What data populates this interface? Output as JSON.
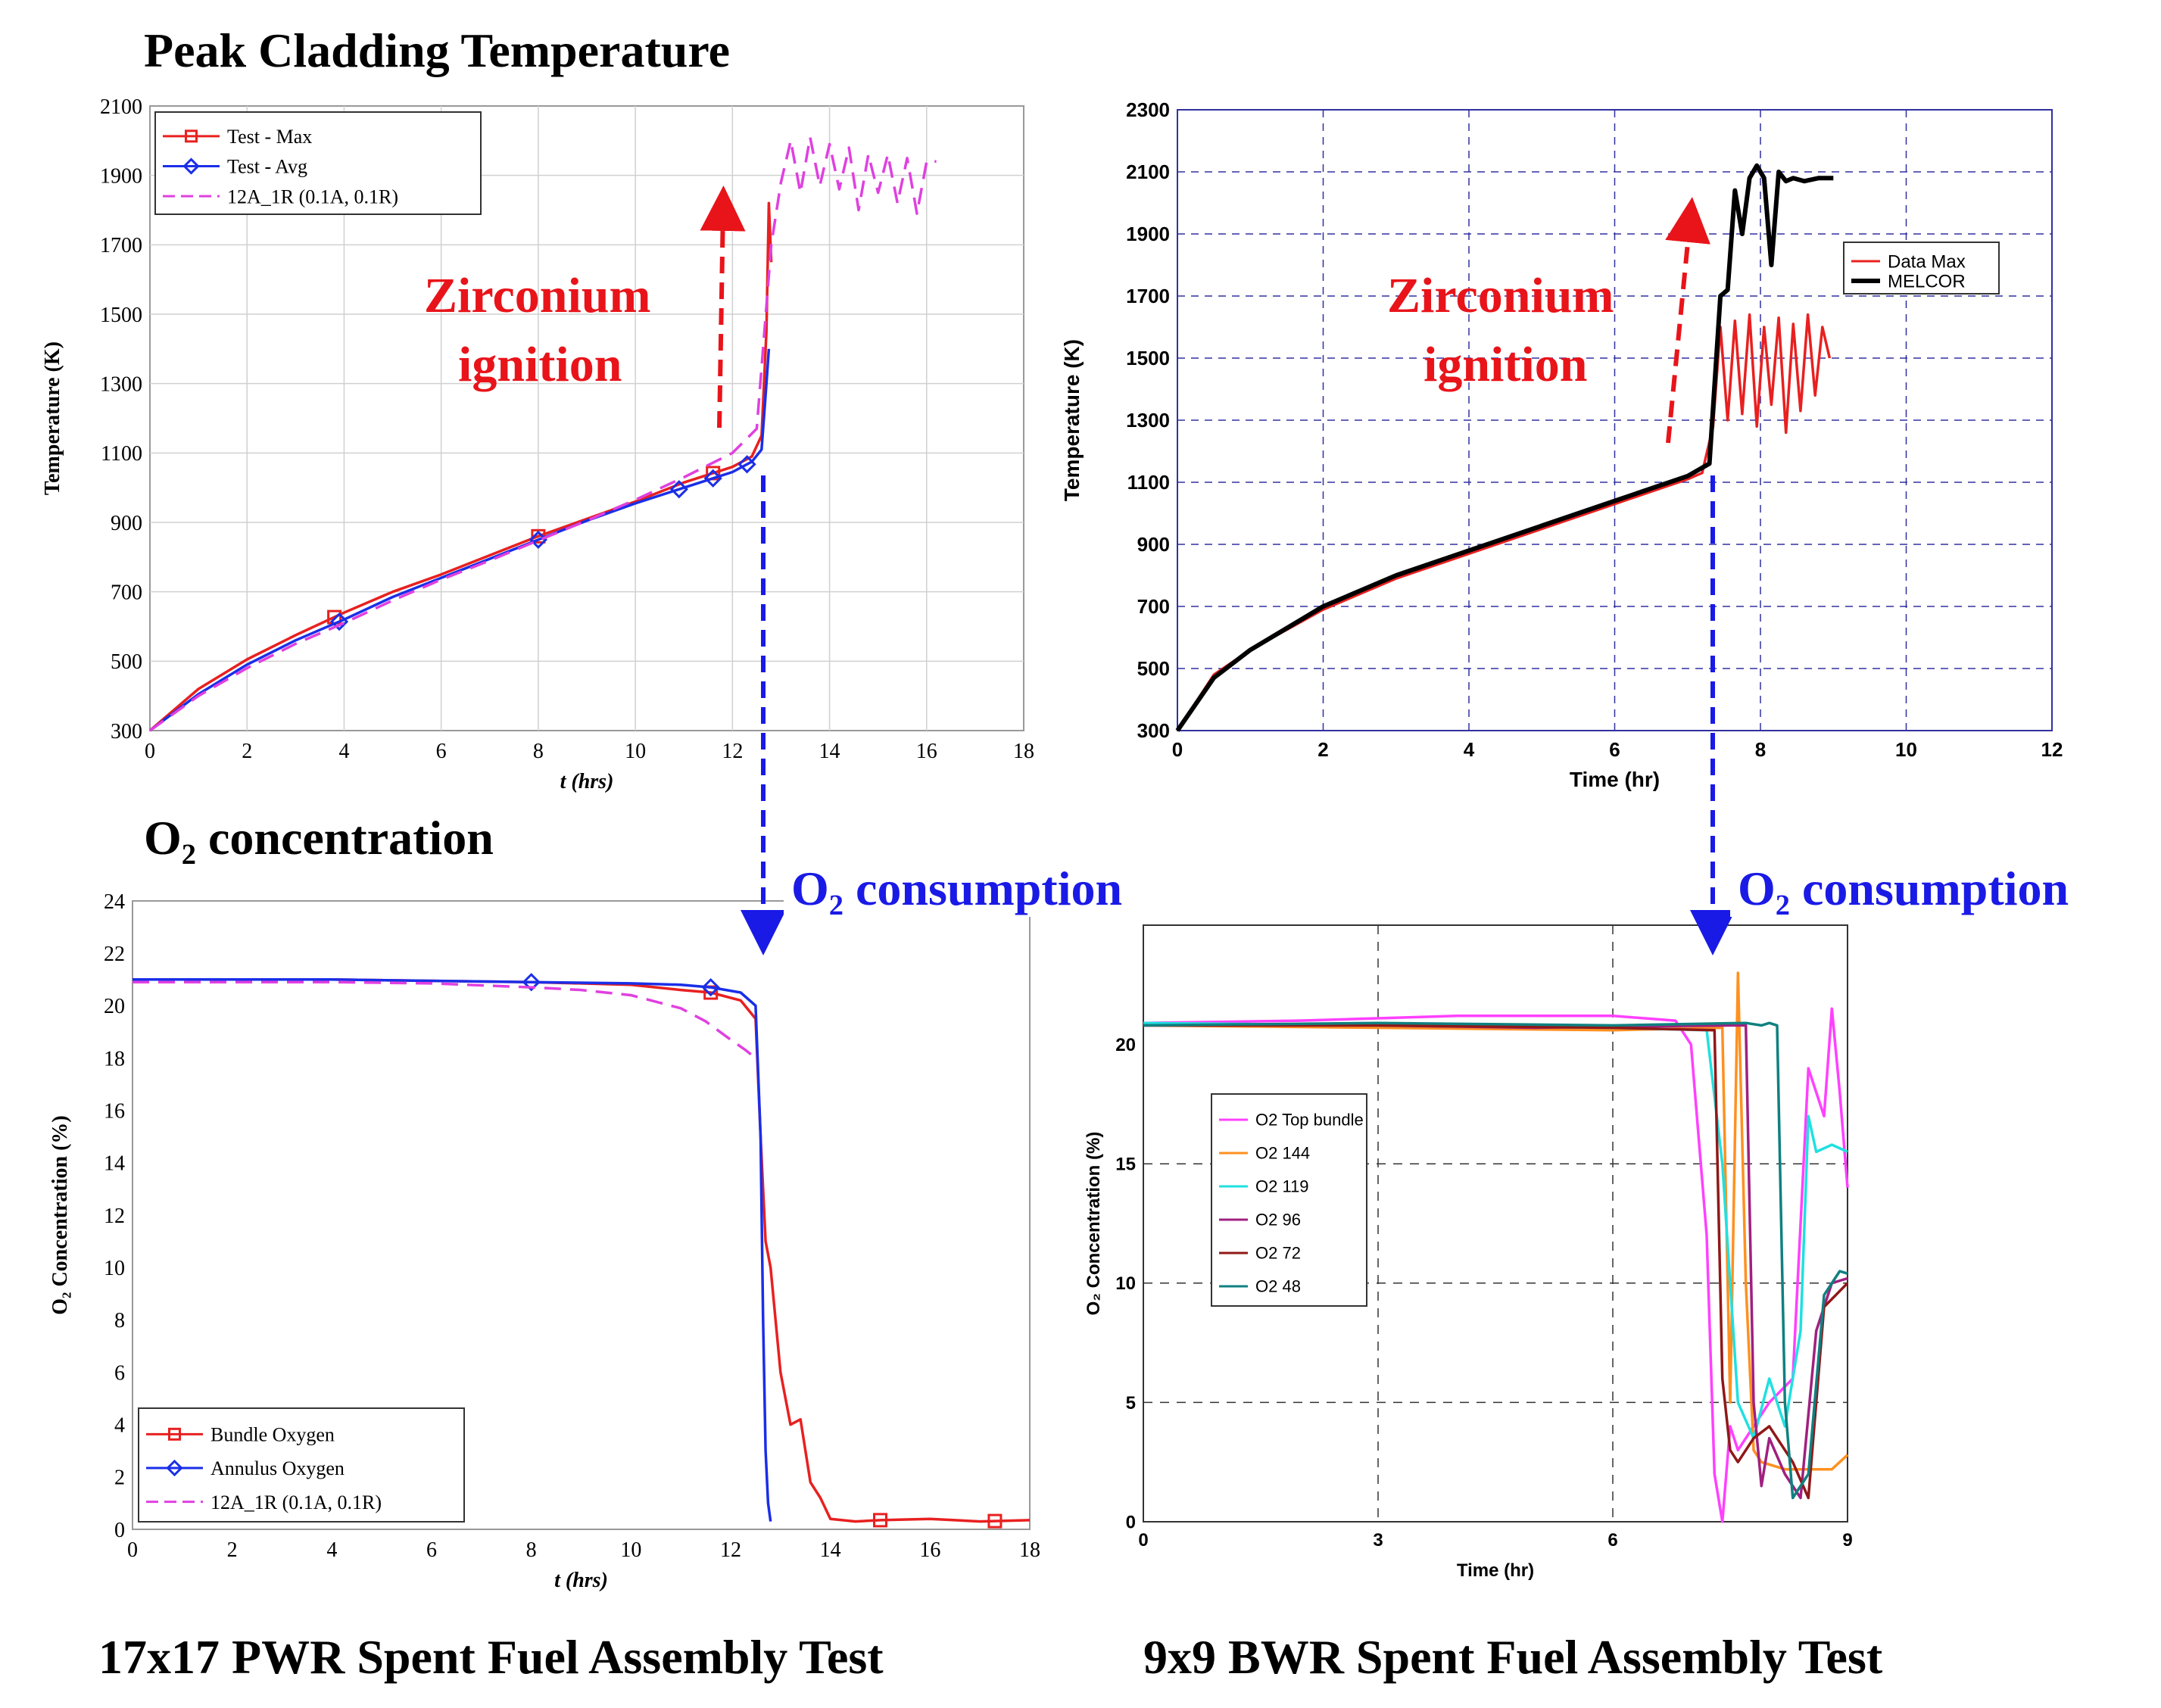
{
  "figure": {
    "heading_peak": "Peak Cladding Temperature",
    "heading_o2": "O₂ concentration",
    "caption_left": "17x17 PWR Spent Fuel Assembly Test",
    "caption_right": "9x9 BWR Spent Fuel Assembly Test",
    "annotation_ignition_line1": "Zirconium",
    "annotation_ignition_line2": "ignition",
    "annotation_consumption": "O₂ consumption",
    "colors": {
      "annotation_red": "#e8141a",
      "annotation_blue": "#1a1ae6",
      "grid_blue": "#3030a0"
    }
  },
  "chart_data": [
    {
      "id": "pwr_temp",
      "type": "line",
      "title": "",
      "xlabel": "t (hrs)",
      "ylabel": "Temperature (K)",
      "xlim": [
        0,
        18
      ],
      "ylim": [
        300,
        2100
      ],
      "xticks": [
        0,
        2,
        4,
        6,
        8,
        10,
        12,
        14,
        16,
        18
      ],
      "yticks": [
        300,
        500,
        700,
        900,
        1100,
        1300,
        1500,
        1700,
        1900,
        2100
      ],
      "grid": true,
      "legend": "top-left",
      "series": [
        {
          "name": "Test - Max",
          "color": "#e82020",
          "marker": "square",
          "x": [
            0,
            1,
            2,
            3,
            4,
            5,
            6,
            7,
            8,
            9,
            10,
            11,
            12,
            12.4,
            12.6,
            12.7,
            12.75,
            12.8
          ],
          "y": [
            300,
            420,
            505,
            575,
            640,
            700,
            750,
            805,
            860,
            910,
            960,
            1015,
            1060,
            1090,
            1150,
            1450,
            1820,
            1650
          ],
          "marker_x": [
            3.8,
            8.0,
            11.6
          ]
        },
        {
          "name": "Test - Avg",
          "color": "#1a2ee8",
          "marker": "diamond",
          "x": [
            0,
            1,
            2,
            3,
            4,
            5,
            6,
            7,
            8,
            9,
            10,
            11,
            12,
            12.4,
            12.6,
            12.7,
            12.75
          ],
          "y": [
            300,
            405,
            490,
            560,
            620,
            685,
            740,
            795,
            850,
            905,
            955,
            1000,
            1045,
            1075,
            1110,
            1300,
            1400
          ],
          "marker_x": [
            3.9,
            8.0,
            10.9,
            11.6,
            12.3
          ]
        },
        {
          "name": "12A_1R (0.1A, 0.1R)",
          "color": "#e040e0",
          "dash": true,
          "x": [
            0,
            1,
            2,
            3,
            4,
            5,
            6,
            7,
            8,
            9,
            10,
            11,
            12,
            12.5,
            12.8,
            13.0,
            13.2,
            13.4,
            13.6,
            13.8,
            14.0,
            14.2,
            14.4,
            14.6,
            14.8,
            15.0,
            15.2,
            15.4,
            15.6,
            15.8,
            16.0,
            16.2
          ],
          "y": [
            300,
            400,
            480,
            550,
            610,
            675,
            735,
            790,
            848,
            905,
            965,
            1030,
            1100,
            1170,
            1700,
            1880,
            2000,
            1850,
            2010,
            1870,
            1990,
            1860,
            1980,
            1800,
            1960,
            1850,
            1960,
            1820,
            1950,
            1790,
            1940,
            1940
          ]
        }
      ],
      "annotations": [
        "Zirconium",
        "ignition"
      ]
    },
    {
      "id": "bwr_temp",
      "type": "line",
      "title": "",
      "xlabel": "Time (hr)",
      "ylabel": "Temperature (K)",
      "xlim": [
        0,
        12
      ],
      "ylim": [
        300,
        2300
      ],
      "xticks": [
        0,
        2,
        4,
        6,
        8,
        10,
        12
      ],
      "yticks": [
        300,
        500,
        700,
        900,
        1100,
        1300,
        1500,
        1700,
        1900,
        2100,
        2300
      ],
      "grid": true,
      "legend": "right",
      "series": [
        {
          "name": "Data Max",
          "color": "#e82020",
          "x": [
            0,
            0.5,
            1,
            2,
            3,
            4,
            5,
            6,
            7,
            7.2,
            7.35,
            7.45,
            7.55,
            7.65,
            7.75,
            7.85,
            7.95,
            8.05,
            8.15,
            8.25,
            8.35,
            8.45,
            8.55,
            8.65,
            8.75,
            8.85,
            8.95
          ],
          "y": [
            300,
            480,
            560,
            690,
            790,
            870,
            950,
            1030,
            1110,
            1130,
            1280,
            1600,
            1300,
            1620,
            1320,
            1640,
            1280,
            1600,
            1350,
            1630,
            1260,
            1610,
            1330,
            1640,
            1380,
            1600,
            1500
          ]
        },
        {
          "name": "MELCOR",
          "color": "#000000",
          "x": [
            0,
            0.5,
            1,
            2,
            3,
            4,
            5,
            6,
            7,
            7.3,
            7.45,
            7.55,
            7.65,
            7.75,
            7.85,
            7.95,
            8.05,
            8.15,
            8.25,
            8.35,
            8.45,
            8.6,
            8.8,
            9.0
          ],
          "y": [
            300,
            470,
            560,
            700,
            800,
            880,
            960,
            1040,
            1120,
            1160,
            1700,
            1720,
            2040,
            1900,
            2080,
            2120,
            2080,
            1800,
            2100,
            2070,
            2080,
            2070,
            2080,
            2080
          ]
        }
      ],
      "annotations": [
        "Zirconium",
        "ignition"
      ]
    },
    {
      "id": "pwr_o2",
      "type": "line",
      "title": "",
      "xlabel": "t (hrs)",
      "ylabel": "O₂ Concentration (%)",
      "xlim": [
        0,
        18
      ],
      "ylim": [
        0,
        24
      ],
      "xticks": [
        0,
        2,
        4,
        6,
        8,
        10,
        12,
        14,
        16,
        18
      ],
      "yticks": [
        0,
        2,
        4,
        6,
        8,
        10,
        12,
        14,
        16,
        18,
        20,
        22,
        24
      ],
      "grid": false,
      "legend": "bottom-left",
      "series": [
        {
          "name": "Bundle Oxygen",
          "color": "#e82020",
          "marker": "square",
          "x": [
            0,
            4,
            8,
            10,
            11,
            11.6,
            12.2,
            12.5,
            12.6,
            12.7,
            12.8,
            13.0,
            13.2,
            13.4,
            13.6,
            13.8,
            14.0,
            14.5,
            15.0,
            16.0,
            17.0,
            18.0
          ],
          "y": [
            21.0,
            21.0,
            20.9,
            20.8,
            20.6,
            20.5,
            20.2,
            19.5,
            15.0,
            11.0,
            10.0,
            6.0,
            4.0,
            4.2,
            1.8,
            1.2,
            0.4,
            0.3,
            0.35,
            0.4,
            0.3,
            0.35
          ],
          "marker_x": [
            11.6,
            15.0,
            17.3
          ]
        },
        {
          "name": "Annulus Oxygen",
          "color": "#1a2ee8",
          "marker": "diamond",
          "x": [
            0,
            4,
            8,
            10,
            11,
            11.6,
            12.2,
            12.5,
            12.6,
            12.65,
            12.7,
            12.75,
            12.8
          ],
          "y": [
            21.0,
            21.0,
            20.9,
            20.85,
            20.8,
            20.7,
            20.5,
            20.0,
            15.0,
            8.0,
            3.0,
            1.0,
            0.3
          ],
          "marker_x": [
            8.0,
            11.6
          ]
        },
        {
          "name": "12A_1R (0.1A, 0.1R)",
          "color": "#e040e0",
          "dash": true,
          "x": [
            0,
            4,
            6,
            8,
            9,
            10,
            11,
            11.5,
            12.0,
            12.3,
            12.5
          ],
          "y": [
            20.9,
            20.9,
            20.85,
            20.7,
            20.6,
            20.4,
            19.9,
            19.4,
            18.7,
            18.3,
            18.0
          ]
        }
      ],
      "annotations": [
        "O₂ consumption"
      ]
    },
    {
      "id": "bwr_o2",
      "type": "line",
      "title": "",
      "xlabel": "Time (hr)",
      "ylabel": "O₂ Concentration (%)",
      "xlim": [
        0,
        9
      ],
      "ylim": [
        0,
        25
      ],
      "xticks": [
        0,
        3,
        6,
        9
      ],
      "yticks": [
        0,
        5,
        10,
        15,
        20
      ],
      "grid": true,
      "legend": "left",
      "series": [
        {
          "name": "O2 Top bundle",
          "color": "#ff40ff",
          "x": [
            0,
            2,
            4,
            6,
            6.8,
            7.0,
            7.2,
            7.3,
            7.4,
            7.5,
            7.6,
            7.8,
            8.0,
            8.3,
            8.5,
            8.7,
            8.8,
            8.9,
            9.0
          ],
          "y": [
            20.9,
            21.0,
            21.2,
            21.2,
            21.0,
            20.0,
            12.0,
            2.0,
            0.0,
            4.0,
            3.0,
            4.0,
            5.0,
            6.0,
            19.0,
            17.0,
            21.5,
            18.0,
            14.0
          ]
        },
        {
          "name": "O2 144",
          "color": "#ff9020",
          "x": [
            0,
            3,
            6,
            7.4,
            7.5,
            7.6,
            7.7,
            7.8,
            7.9,
            8.2,
            8.5,
            8.8,
            9.0
          ],
          "y": [
            20.8,
            20.7,
            20.6,
            20.7,
            5.0,
            23.0,
            10.0,
            3.0,
            2.5,
            2.2,
            2.2,
            2.2,
            2.8
          ]
        },
        {
          "name": "O2 119",
          "color": "#20e0e0",
          "x": [
            0,
            3,
            6,
            7.2,
            7.4,
            7.6,
            7.8,
            8.0,
            8.2,
            8.4,
            8.5,
            8.6,
            8.8,
            9.0
          ],
          "y": [
            20.9,
            20.8,
            20.7,
            20.6,
            15.0,
            5.0,
            3.5,
            6.0,
            4.0,
            8.0,
            17.0,
            15.5,
            15.8,
            15.5
          ]
        },
        {
          "name": "O2 96",
          "color": "#a02080",
          "x": [
            0,
            3,
            5,
            7.5,
            7.7,
            7.8,
            7.9,
            8.0,
            8.2,
            8.4,
            8.6,
            8.8,
            9.0
          ],
          "y": [
            20.8,
            20.8,
            20.7,
            20.8,
            20.8,
            5.0,
            1.5,
            3.5,
            2.0,
            1.0,
            8.0,
            10.0,
            10.2
          ]
        },
        {
          "name": "O2 72",
          "color": "#901818",
          "x": [
            0,
            3,
            6,
            7.3,
            7.4,
            7.5,
            7.6,
            7.8,
            8.0,
            8.3,
            8.5,
            8.7,
            9.0
          ],
          "y": [
            20.8,
            20.8,
            20.7,
            20.6,
            6.0,
            3.0,
            2.5,
            3.5,
            4.0,
            2.5,
            1.0,
            9.0,
            10.0
          ]
        },
        {
          "name": "O2 48",
          "color": "#108080",
          "x": [
            0,
            3,
            6,
            7.7,
            7.9,
            8.0,
            8.1,
            8.2,
            8.3,
            8.5,
            8.7,
            8.9,
            9.0
          ],
          "y": [
            20.8,
            20.9,
            20.8,
            20.9,
            20.8,
            20.9,
            20.8,
            5.0,
            1.0,
            2.0,
            9.5,
            10.5,
            10.4
          ]
        }
      ],
      "annotations": [
        "O₂ consumption"
      ]
    }
  ]
}
